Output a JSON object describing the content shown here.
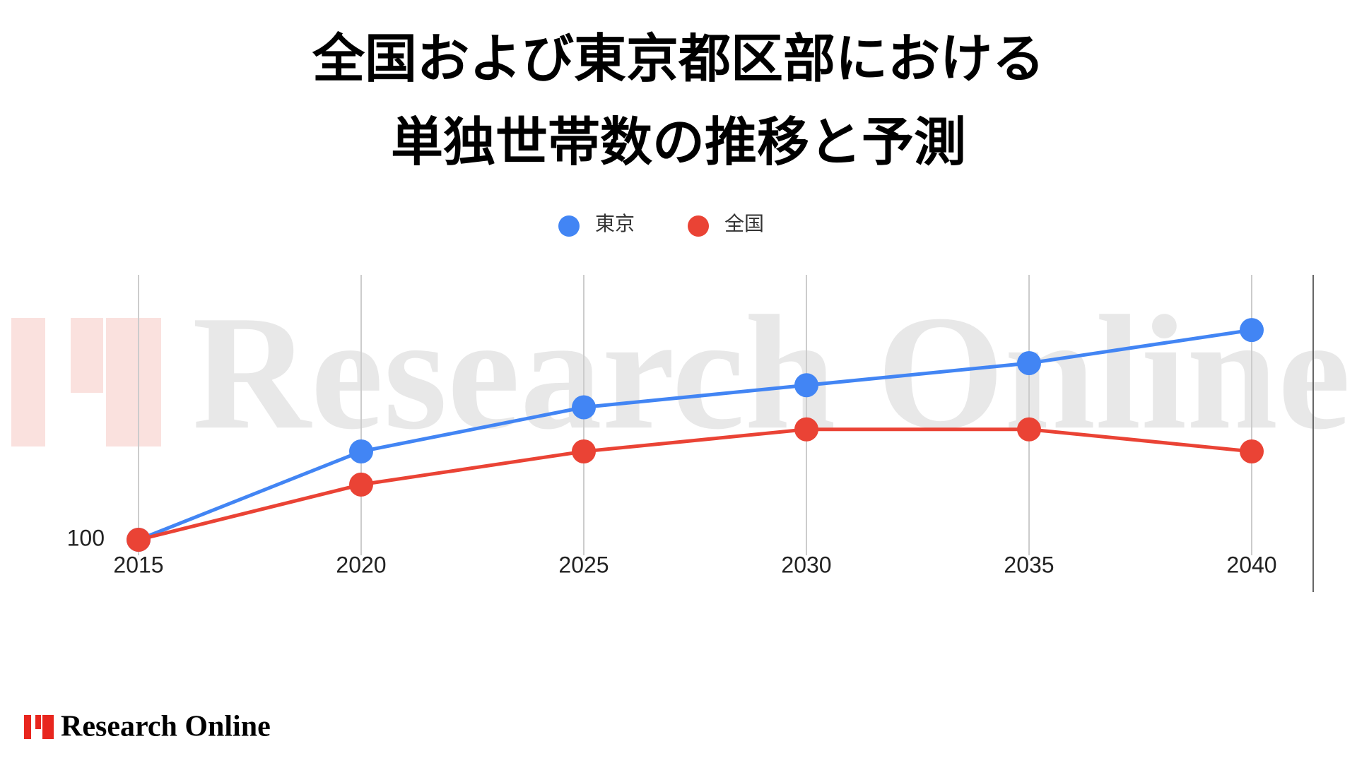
{
  "chart_data": {
    "type": "line",
    "title": [
      "全国および東京都区部における",
      "単独世帯数の推移と予測"
    ],
    "categories": [
      "2015",
      "2020",
      "2025",
      "2030",
      "2035",
      "2040"
    ],
    "series": [
      {
        "name": "東京",
        "color": "#4285f4",
        "values": [
          100,
          108,
          112,
          114,
          116,
          119
        ]
      },
      {
        "name": "全国",
        "color": "#ea4335",
        "values": [
          100,
          105,
          108,
          110,
          110,
          108
        ]
      }
    ],
    "ylim": [
      100,
      124
    ],
    "yticks": [
      100
    ],
    "grid": true,
    "legend": "top"
  },
  "watermark": "Research Online",
  "footer": {
    "brand": "Research Online"
  }
}
